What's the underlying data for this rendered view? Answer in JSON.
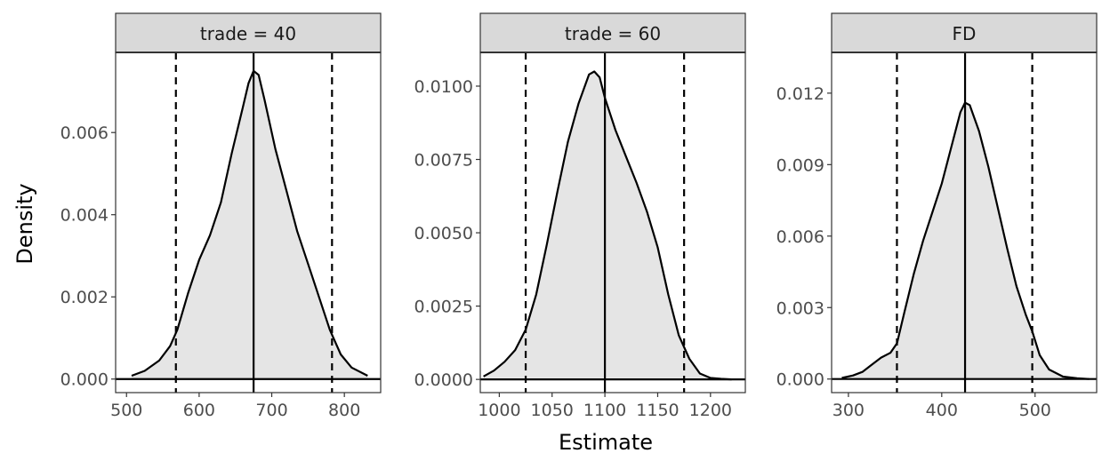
{
  "chart_data": [
    {
      "type": "area",
      "facet": "trade = 40",
      "xlim": [
        485,
        850
      ],
      "ylim": [
        -0.00033,
        0.00795
      ],
      "x_ticks": [
        500,
        600,
        700,
        800
      ],
      "y_ticks": [
        0.0,
        0.002,
        0.004,
        0.006
      ],
      "y_tick_labels": [
        "0.000",
        "0.002",
        "0.004",
        "0.006"
      ],
      "estimate": 675,
      "ci": [
        568,
        783
      ],
      "density": {
        "x": [
          507,
          525,
          545,
          560,
          570,
          585,
          600,
          615,
          630,
          645,
          660,
          668,
          675,
          682,
          690,
          705,
          720,
          735,
          750,
          765,
          780,
          795,
          810,
          832
        ],
        "y": [
          8e-05,
          0.0002,
          0.00045,
          0.0008,
          0.0012,
          0.0021,
          0.0029,
          0.0035,
          0.0043,
          0.0055,
          0.0066,
          0.0072,
          0.0075,
          0.0074,
          0.0068,
          0.0056,
          0.0046,
          0.0036,
          0.0028,
          0.002,
          0.0012,
          0.0006,
          0.00028,
          8e-05
        ]
      }
    },
    {
      "type": "area",
      "facet": "trade = 60",
      "xlim": [
        982,
        1233
      ],
      "ylim": [
        -0.00045,
        0.01115
      ],
      "x_ticks": [
        1000,
        1050,
        1100,
        1150,
        1200
      ],
      "y_ticks": [
        0.0,
        0.0025,
        0.005,
        0.0075,
        0.01
      ],
      "y_tick_labels": [
        "0.0000",
        "0.0025",
        "0.0050",
        "0.0075",
        "0.0100"
      ],
      "estimate": 1100,
      "ci": [
        1025,
        1175
      ],
      "density": {
        "x": [
          985,
          995,
          1005,
          1015,
          1025,
          1035,
          1045,
          1055,
          1065,
          1075,
          1085,
          1090,
          1095,
          1100,
          1110,
          1120,
          1130,
          1140,
          1150,
          1160,
          1170,
          1180,
          1190,
          1200,
          1210,
          1220
        ],
        "y": [
          0.0001,
          0.0003,
          0.0006,
          0.001,
          0.0017,
          0.0029,
          0.0046,
          0.0064,
          0.0081,
          0.0094,
          0.0104,
          0.0105,
          0.0103,
          0.0096,
          0.0085,
          0.0076,
          0.0067,
          0.0057,
          0.0045,
          0.0029,
          0.0015,
          0.0007,
          0.0002,
          5e-05,
          2e-05,
          0.0
        ]
      }
    },
    {
      "type": "area",
      "facet": "FD",
      "xlim": [
        282,
        566
      ],
      "ylim": [
        -0.00057,
        0.01371
      ],
      "x_ticks": [
        300,
        400,
        500
      ],
      "y_ticks": [
        0.0,
        0.003,
        0.006,
        0.009,
        0.012
      ],
      "y_tick_labels": [
        "0.000",
        "0.003",
        "0.006",
        "0.009",
        "0.012"
      ],
      "estimate": 425,
      "ci": [
        352,
        497
      ],
      "density": {
        "x": [
          293,
          305,
          315,
          325,
          335,
          345,
          352,
          360,
          370,
          380,
          390,
          400,
          410,
          420,
          425,
          430,
          440,
          450,
          460,
          470,
          480,
          490,
          497,
          505,
          515,
          530,
          545,
          558
        ],
        "y": [
          5e-05,
          0.00015,
          0.0003,
          0.0006,
          0.0009,
          0.0011,
          0.0015,
          0.0028,
          0.0044,
          0.0058,
          0.007,
          0.0082,
          0.0097,
          0.0112,
          0.0116,
          0.0115,
          0.0104,
          0.0089,
          0.0072,
          0.0055,
          0.0039,
          0.0027,
          0.002,
          0.001,
          0.0004,
          0.0001,
          3e-05,
          0.0
        ]
      }
    }
  ],
  "labels": {
    "ylabel": "Density",
    "xlabel": "Estimate"
  },
  "colors": {
    "fill": "#e5e5e5",
    "line": "#000000",
    "strip_bg": "#d9d9d9",
    "panel_border": "#333333",
    "tick_text": "#4d4d4d"
  }
}
